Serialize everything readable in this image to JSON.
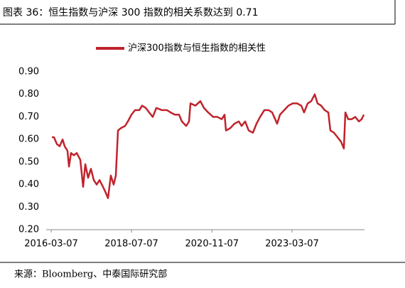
{
  "chart_data": {
    "type": "line",
    "title": "图表 36：恒生指数与沪深 300 指数的相关系数达到 0.71",
    "source": "来源：Bloomberg、中泰国际研究部",
    "x": [
      "2016-03-15",
      "2016-04-06",
      "2016-05-06",
      "2016-06-05",
      "2016-07-06",
      "2016-07-28",
      "2016-08-27",
      "2016-09-12",
      "2016-10-04",
      "2016-11-03",
      "2016-12-03",
      "2017-01-10",
      "2017-02-09",
      "2017-03-04",
      "2017-04-03",
      "2017-05-03",
      "2017-06-02",
      "2017-07-03",
      "2017-08-02",
      "2017-09-08",
      "2017-10-01",
      "2017-10-31",
      "2017-11-30",
      "2017-12-30",
      "2018-01-22",
      "2018-02-14",
      "2018-03-16",
      "2018-04-30",
      "2018-05-30",
      "2018-07-07",
      "2018-08-14",
      "2018-09-28",
      "2018-10-28",
      "2018-12-05",
      "2019-01-11",
      "2019-02-18",
      "2019-03-28",
      "2019-05-27",
      "2019-07-19",
      "2019-08-26",
      "2019-10-10",
      "2019-11-24",
      "2019-12-24",
      "2020-02-08",
      "2020-03-09",
      "2020-03-24",
      "2020-05-16",
      "2020-07-07",
      "2020-08-14",
      "2020-09-28",
      "2020-11-20",
      "2021-01-04",
      "2021-02-19",
      "2021-03-21",
      "2021-04-05",
      "2021-05-20",
      "2021-07-04",
      "2021-08-19",
      "2021-09-18",
      "2021-10-25",
      "2021-12-02",
      "2022-01-16",
      "2022-02-23",
      "2022-04-02",
      "2022-05-17",
      "2022-07-01",
      "2022-08-08",
      "2022-09-30",
      "2022-10-30",
      "2022-12-14",
      "2023-01-28",
      "2023-03-15",
      "2023-04-29",
      "2023-06-13",
      "2023-07-13",
      "2023-08-20",
      "2023-09-27",
      "2023-11-03",
      "2023-12-03",
      "2024-01-10",
      "2024-02-17",
      "2024-03-26",
      "2024-04-17",
      "2024-05-25",
      "2024-07-02",
      "2024-08-08",
      "2024-09-07",
      "2024-09-23",
      "2024-10-23",
      "2024-11-29",
      "2025-01-06",
      "2025-02-13",
      "2025-03-15",
      "2025-04-07"
    ],
    "series": [
      {
        "name": "沪深300指数与恒生指数的相关性",
        "color": "#c0232c",
        "values": [
          0.61,
          0.61,
          0.58,
          0.57,
          0.6,
          0.57,
          0.55,
          0.48,
          0.54,
          0.53,
          0.54,
          0.51,
          0.39,
          0.49,
          0.43,
          0.47,
          0.42,
          0.4,
          0.42,
          0.39,
          0.37,
          0.34,
          0.44,
          0.4,
          0.44,
          0.64,
          0.65,
          0.66,
          0.68,
          0.71,
          0.73,
          0.73,
          0.75,
          0.74,
          0.72,
          0.7,
          0.74,
          0.73,
          0.73,
          0.72,
          0.71,
          0.71,
          0.68,
          0.66,
          0.68,
          0.76,
          0.75,
          0.77,
          0.74,
          0.72,
          0.7,
          0.7,
          0.69,
          0.71,
          0.64,
          0.65,
          0.67,
          0.68,
          0.66,
          0.68,
          0.64,
          0.63,
          0.67,
          0.7,
          0.73,
          0.73,
          0.72,
          0.67,
          0.71,
          0.73,
          0.75,
          0.76,
          0.76,
          0.75,
          0.72,
          0.76,
          0.77,
          0.8,
          0.76,
          0.75,
          0.73,
          0.72,
          0.64,
          0.63,
          0.61,
          0.59,
          0.56,
          0.72,
          0.69,
          0.69,
          0.7,
          0.68,
          0.69,
          0.71
        ]
      }
    ],
    "xlim": [
      "2016-01-14",
      "2025-04-14"
    ],
    "xticks": [
      "2016-03-07",
      "2018-07-07",
      "2020-11-07",
      "2023-03-07"
    ],
    "ylim": [
      0.2,
      0.9
    ],
    "yticks": [
      {
        "value": 0.2,
        "label": "0.20"
      },
      {
        "value": 0.3,
        "label": "0.30"
      },
      {
        "value": 0.4,
        "label": "0.40"
      },
      {
        "value": 0.5,
        "label": "0.50"
      },
      {
        "value": 0.6,
        "label": "0.60"
      },
      {
        "value": 0.7,
        "label": "0.70"
      },
      {
        "value": 0.8,
        "label": "0.80"
      },
      {
        "value": 0.9,
        "label": "0.90"
      }
    ],
    "grid": false,
    "legend": "top"
  }
}
